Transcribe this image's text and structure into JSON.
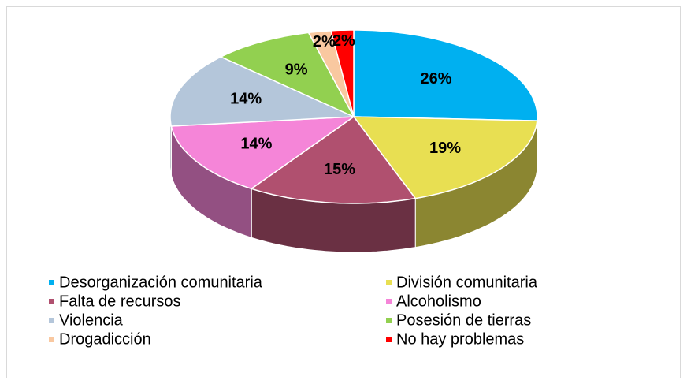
{
  "chart_data": {
    "type": "pie",
    "categories": [
      "Desorganización comunitaria",
      "División comunitaria",
      "Falta de recursos",
      "Alcoholismo",
      "Violencia",
      "Posesión de tierras",
      "Drogadicción",
      "No hay problemas"
    ],
    "values": [
      26,
      19,
      15,
      14,
      14,
      9,
      2,
      2
    ],
    "value_labels": [
      "26%",
      "19%",
      "15%",
      "14%",
      "14%",
      "9%",
      "2%",
      "2%"
    ],
    "colors": [
      "#00b0f0",
      "#e8df52",
      "#b0506f",
      "#f585d8",
      "#b4c6da",
      "#92d050",
      "#f9c8a0",
      "#ff0000"
    ],
    "legend": "bottom"
  }
}
